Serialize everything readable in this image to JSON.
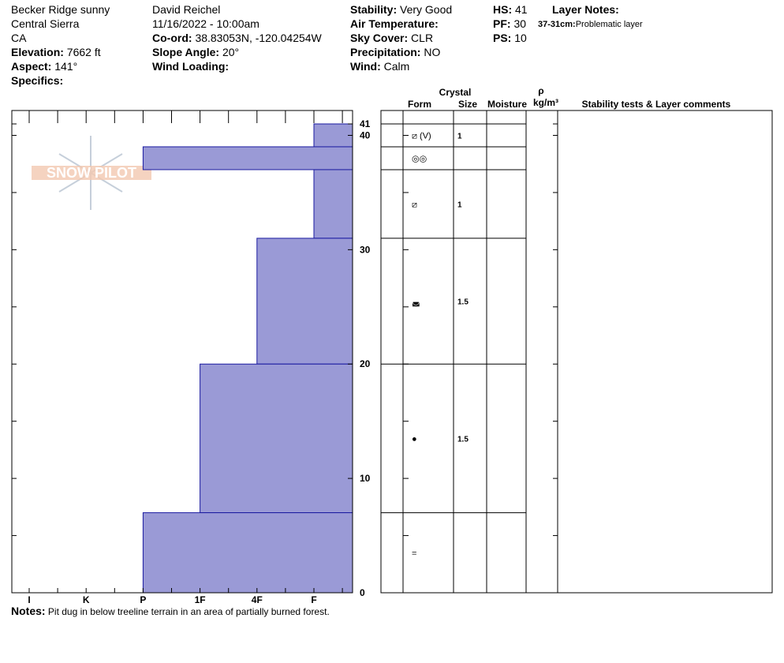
{
  "header": {
    "columns": [
      [
        {
          "text": "Becker Ridge sunny"
        },
        {
          "text": "Central Sierra"
        },
        {
          "text": "CA"
        },
        {
          "label": "Elevation:",
          "value": "7662 ft"
        },
        {
          "label": "Aspect:",
          "value": "141°"
        },
        {
          "label": "Specifics:"
        }
      ],
      [
        {
          "text": "David Reichel"
        },
        {
          "text": "11/16/2022 - 10:00am"
        },
        {
          "label": "Co-ord:",
          "value": "38.83053N, -120.04254W"
        },
        {
          "label": "Slope Angle:",
          "value": "20°"
        },
        {
          "label": "Wind Loading:"
        }
      ],
      [
        {
          "label": "Stability:",
          "value": "Very Good"
        },
        {
          "label": "Air Temperature:"
        },
        {
          "label": "Sky Cover:",
          "value": "CLR"
        },
        {
          "label": "Precipitation:",
          "value": "NO"
        },
        {
          "label": "Wind:",
          "value": "Calm"
        }
      ],
      [
        {
          "label": "HS:",
          "value": "41"
        },
        {
          "label": "PF:",
          "value": "30"
        },
        {
          "label": "PS:",
          "value": "10"
        }
      ]
    ],
    "layer_notes_title": "Layer Notes:",
    "layer_note_range": "37-31cm:",
    "layer_note_text": "Problematic layer"
  },
  "logo": "SNOW PILOT",
  "table_headers": {
    "crystal": "Crystal",
    "form": "Form",
    "size": "Size",
    "moisture": "Moisture",
    "rho": "ρ",
    "density_unit": "kg/m³",
    "comments": "Stability tests & Layer comments"
  },
  "chart_data": {
    "type": "snowprofile",
    "ylim": [
      0,
      41
    ],
    "yticks": [
      0,
      10,
      20,
      30,
      40,
      41
    ],
    "yminorticks": [
      5,
      15,
      25,
      35
    ],
    "hardness_scale": [
      "I",
      "K",
      "P",
      "1F",
      "4F",
      "F"
    ],
    "color": "#9a9ad6",
    "layers": [
      {
        "top": 41,
        "bottom": 39,
        "hardness": "F",
        "form": "⧄ (V)",
        "size": "1"
      },
      {
        "top": 39,
        "bottom": 37,
        "hardness": "P",
        "form": "◎◎"
      },
      {
        "top": 37,
        "bottom": 31,
        "hardness": "F",
        "form": "⧄",
        "size": "1"
      },
      {
        "top": 31,
        "bottom": 20,
        "hardness": "4F",
        "form": "◛",
        "size": "1.5"
      },
      {
        "top": 20,
        "bottom": 7,
        "hardness": "1F",
        "form": "●",
        "size": "1.5"
      },
      {
        "top": 7,
        "bottom": 0,
        "hardness": "P",
        "form": "="
      }
    ]
  },
  "notes": {
    "label": "Notes:",
    "text": "Pit dug in below treeline terrain in an area of partially burned forest."
  }
}
